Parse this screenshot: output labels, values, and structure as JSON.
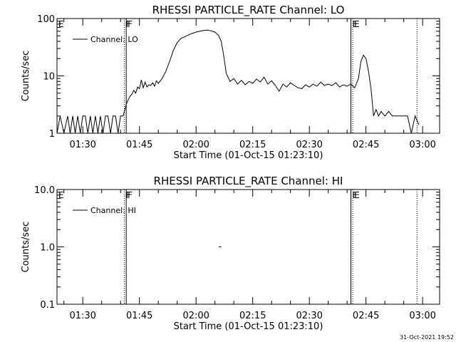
{
  "footer": {
    "stamp": "31-Oct-2021 19:52"
  },
  "chart_data": [
    {
      "type": "line",
      "title": "RHESSI PARTICLE_RATE Channel: LO",
      "xlabel": "Start Time (01-Oct-15 01:23:10)",
      "ylabel": "Counts/sec",
      "yscale": "log",
      "ylim": [
        1,
        100
      ],
      "xlim": [
        "01:23:10",
        "03:04:30"
      ],
      "x_ticks": [
        "01:30",
        "01:45",
        "02:00",
        "02:15",
        "02:30",
        "02:45",
        "03:00"
      ],
      "y_ticks": [
        "1",
        "10",
        "100"
      ],
      "legend": {
        "position": "top-left",
        "entries": [
          "Channel: LO"
        ]
      },
      "grid": false,
      "markers": [
        {
          "label": "E",
          "time": "01:23:10",
          "style": "solid"
        },
        {
          "label": "F",
          "time": "01:41:00",
          "style": "dotted"
        },
        {
          "label": "F",
          "time": "01:41:30",
          "style": "solid"
        },
        {
          "label": "E",
          "time": "02:41:00",
          "style": "solid"
        },
        {
          "label": "E",
          "time": "02:41:30",
          "style": "dotted"
        },
        {
          "label": "",
          "time": "02:58:30",
          "style": "dotted"
        }
      ],
      "series": [
        {
          "name": "Channel: LO",
          "x": [
            "01:23:10",
            "01:24:00",
            "01:25:00",
            "01:26:00",
            "01:26:40",
            "01:27:20",
            "01:28:00",
            "01:28:40",
            "01:29:20",
            "01:30:00",
            "01:30:40",
            "01:31:20",
            "01:32:00",
            "01:32:40",
            "01:33:20",
            "01:34:00",
            "01:34:40",
            "01:35:20",
            "01:36:00",
            "01:36:40",
            "01:37:20",
            "01:38:00",
            "01:38:40",
            "01:39:20",
            "01:40:00",
            "01:40:40",
            "01:41:00",
            "01:41:30",
            "01:42:00",
            "01:42:30",
            "01:43:00",
            "01:43:30",
            "01:44:00",
            "01:44:30",
            "01:45:00",
            "01:45:30",
            "01:46:00",
            "01:46:30",
            "01:47:00",
            "01:47:30",
            "01:48:00",
            "01:48:30",
            "01:49:00",
            "01:49:30",
            "01:50:00",
            "01:51:00",
            "01:52:00",
            "01:53:00",
            "01:54:00",
            "01:55:00",
            "01:56:00",
            "01:57:00",
            "01:58:00",
            "01:59:00",
            "02:00:00",
            "02:01:00",
            "02:02:00",
            "02:03:00",
            "02:04:00",
            "02:05:00",
            "02:06:00",
            "02:06:40",
            "02:07:20",
            "02:08:00",
            "02:09:00",
            "02:10:00",
            "02:11:00",
            "02:12:00",
            "02:13:00",
            "02:14:00",
            "02:15:00",
            "02:16:00",
            "02:17:00",
            "02:18:00",
            "02:19:00",
            "02:20:00",
            "02:21:00",
            "02:22:00",
            "02:23:00",
            "02:24:00",
            "02:25:00",
            "02:26:00",
            "02:27:00",
            "02:28:00",
            "02:29:00",
            "02:30:00",
            "02:31:00",
            "02:32:00",
            "02:33:00",
            "02:34:00",
            "02:35:00",
            "02:36:00",
            "02:37:00",
            "02:38:00",
            "02:39:00",
            "02:40:00",
            "02:41:00",
            "02:42:00",
            "02:43:00",
            "02:43:40",
            "02:44:20",
            "02:45:00",
            "02:45:40",
            "02:46:20",
            "02:47:00",
            "02:47:40",
            "02:48:20",
            "02:49:00",
            "02:50:00",
            "02:51:00",
            "02:52:00",
            "02:53:00",
            "02:54:00",
            "02:55:00",
            "02:56:00",
            "02:57:00",
            "02:58:00",
            "02:59:00"
          ],
          "y": [
            1,
            2,
            1,
            2,
            1,
            2,
            1,
            2,
            1,
            2,
            2,
            1,
            2,
            1,
            2,
            1,
            2,
            1,
            2,
            2,
            1,
            2,
            2,
            1,
            2,
            2,
            2.4,
            3.2,
            3.8,
            4.4,
            4.8,
            5.6,
            5.0,
            6.4,
            6.0,
            8.5,
            6.2,
            7.8,
            6.4,
            7.0,
            6.8,
            7.6,
            6.6,
            8.2,
            7.4,
            9.0,
            12,
            18,
            28,
            38,
            45,
            48,
            52,
            55,
            58,
            60,
            62,
            63,
            61,
            58,
            50,
            40,
            22,
            11,
            8.0,
            9.0,
            7.2,
            8.4,
            7.0,
            8.0,
            7.4,
            8.8,
            7.8,
            9.5,
            7.2,
            8.2,
            6.8,
            5.4,
            7.2,
            6.4,
            7.6,
            6.8,
            6.2,
            6.0,
            7.0,
            6.4,
            7.2,
            6.6,
            7.8,
            6.8,
            7.2,
            6.8,
            7.6,
            6.4,
            7.0,
            6.6,
            7.2,
            6.2,
            9.0,
            18,
            23,
            20,
            12,
            6.0,
            2.0,
            2.6,
            2.0,
            2.4,
            2.0,
            2.4,
            2.0,
            2.0,
            2.0,
            2.0,
            2.0,
            1.0,
            2.0,
            1.4
          ]
        }
      ]
    },
    {
      "type": "line",
      "title": "RHESSI PARTICLE_RATE Channel: HI",
      "xlabel": "Start Time (01-Oct-15 01:23:10)",
      "ylabel": "Counts/sec",
      "yscale": "log",
      "ylim": [
        0.1,
        10
      ],
      "xlim": [
        "01:23:10",
        "03:04:30"
      ],
      "x_ticks": [
        "01:30",
        "01:45",
        "02:00",
        "02:15",
        "02:30",
        "02:45",
        "03:00"
      ],
      "y_ticks": [
        "0.1",
        "1.0",
        "10.0"
      ],
      "legend": {
        "position": "top-left",
        "entries": [
          "Channel: HI"
        ]
      },
      "grid": false,
      "markers": [
        {
          "label": "E",
          "time": "01:23:10",
          "style": "solid"
        },
        {
          "label": "F",
          "time": "01:41:00",
          "style": "dotted"
        },
        {
          "label": "F",
          "time": "01:41:30",
          "style": "solid"
        },
        {
          "label": "E",
          "time": "02:41:00",
          "style": "solid"
        },
        {
          "label": "E",
          "time": "02:41:30",
          "style": "dotted"
        },
        {
          "label": "",
          "time": "02:58:30",
          "style": "dotted"
        }
      ],
      "series": [
        {
          "name": "Channel: HI",
          "x": [
            "02:06:00",
            "02:06:40"
          ],
          "y": [
            1.0,
            1.0
          ]
        }
      ]
    }
  ]
}
